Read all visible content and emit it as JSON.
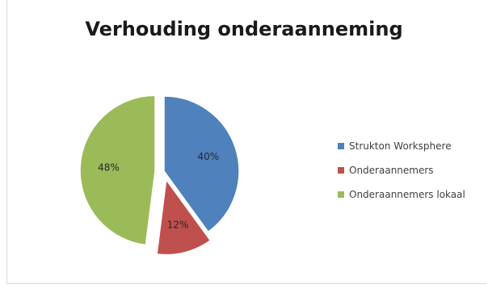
{
  "chart_data": {
    "type": "pie",
    "title": "Verhouding onderaanneming",
    "series": [
      {
        "name": "Strukton Worksphere",
        "value": 40,
        "label": "40%",
        "color": "#4f81bd",
        "exploded": false
      },
      {
        "name": "Onderaannemers",
        "value": 12,
        "label": "12%",
        "color": "#c0504d",
        "exploded": true
      },
      {
        "name": "Onderaannemers lokaal",
        "value": 48,
        "label": "48%",
        "color": "#9bbb59",
        "exploded": true
      }
    ],
    "legend": {
      "position": "right"
    }
  }
}
